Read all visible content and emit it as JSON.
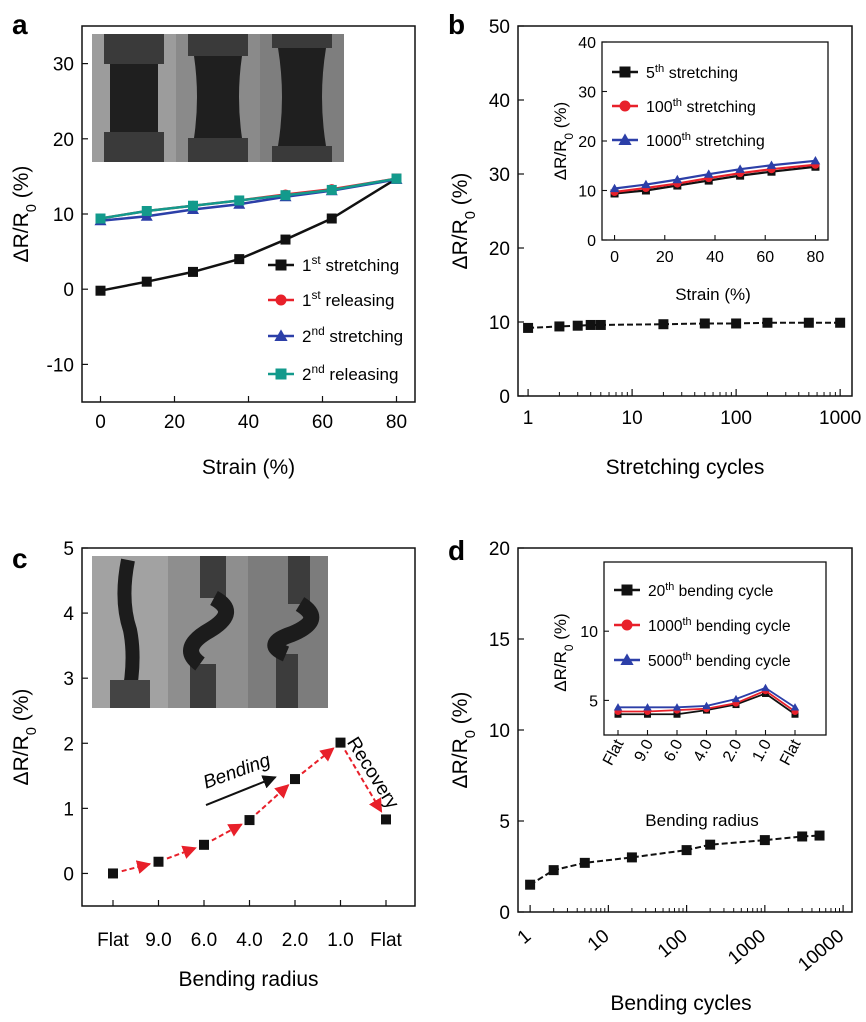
{
  "panels": {
    "a": "a",
    "b": "b",
    "c": "c",
    "d": "d"
  },
  "colors": {
    "black": "#111111",
    "red": "#e8202a",
    "blue": "#2c3fa8",
    "teal": "#139a8c",
    "photo_bg": "#7a7a7a"
  },
  "chart_data": [
    {
      "id": "a",
      "type": "line",
      "xlabel": "Strain (%)",
      "ylabel": "ΔR/R0 (%)",
      "xlim": [
        -5,
        85
      ],
      "ylim": [
        -15,
        35
      ],
      "xticks": [
        "0",
        "20",
        "40",
        "60",
        "80"
      ],
      "yticks": [
        "-10",
        "0",
        "10",
        "20",
        "30"
      ],
      "legend_position": "lower-right",
      "series": [
        {
          "name": "1st stretching",
          "base": "1",
          "sup": "st",
          "rest": " stretching",
          "color": "black",
          "x": [
            0,
            12.5,
            25,
            37.5,
            50,
            62.5,
            80
          ],
          "y": [
            -0.2,
            1.0,
            2.3,
            4.0,
            6.6,
            9.4,
            14.7
          ]
        },
        {
          "name": "1st releasing",
          "base": "1",
          "sup": "st",
          "rest": " releasing",
          "color": "red",
          "x": [
            0,
            12.5,
            25,
            37.5,
            50,
            62.5,
            80
          ],
          "y": [
            9.4,
            10.4,
            11.1,
            11.8,
            12.6,
            13.3,
            14.7
          ]
        },
        {
          "name": "2nd stretching",
          "base": "2",
          "sup": "nd",
          "rest": " stretching",
          "color": "blue",
          "x": [
            0,
            12.5,
            25,
            37.5,
            50,
            62.5,
            80
          ],
          "y": [
            9.1,
            9.7,
            10.6,
            11.3,
            12.3,
            13.1,
            14.6
          ]
        },
        {
          "name": "2nd releasing",
          "base": "2",
          "sup": "nd",
          "rest": " releasing",
          "color": "teal",
          "x": [
            0,
            12.5,
            25,
            37.5,
            50,
            62.5,
            80
          ],
          "y": [
            9.4,
            10.4,
            11.1,
            11.8,
            12.5,
            13.2,
            14.7
          ]
        }
      ]
    },
    {
      "id": "b",
      "type": "line",
      "xlabel": "Stretching cycles",
      "ylabel": "ΔR/R0 (%)",
      "xscale": "log",
      "xlim": [
        0.8,
        1300
      ],
      "ylim": [
        0,
        50
      ],
      "xticks": [
        "1",
        "10",
        "100",
        "1000"
      ],
      "yticks": [
        "0",
        "10",
        "20",
        "30",
        "40",
        "50"
      ],
      "series": [
        {
          "name": "",
          "color": "black",
          "x": [
            1,
            2,
            3,
            4,
            5,
            20,
            50,
            100,
            200,
            500,
            1000
          ],
          "y": [
            9.2,
            9.4,
            9.5,
            9.6,
            9.6,
            9.7,
            9.8,
            9.8,
            9.9,
            9.9,
            9.9
          ]
        }
      ],
      "inset": {
        "xlabel": "Strain (%)",
        "ylabel": "ΔR/R0 (%)",
        "xlim": [
          -5,
          85
        ],
        "ylim": [
          0,
          40
        ],
        "xticks": [
          "0",
          "20",
          "40",
          "60",
          "80"
        ],
        "yticks": [
          "0",
          "10",
          "20",
          "30",
          "40"
        ],
        "legend_position": "top-left",
        "series": [
          {
            "name": "5th stretching",
            "base": "5",
            "sup": "th",
            "rest": " stretching",
            "color": "black",
            "x": [
              0,
              12.5,
              25,
              37.5,
              50,
              62.5,
              80
            ],
            "y": [
              9.4,
              10.0,
              11.0,
              12.0,
              13.0,
              13.8,
              14.8
            ]
          },
          {
            "name": "100th stretching",
            "base": "100",
            "sup": "th",
            "rest": " stretching",
            "color": "red",
            "x": [
              0,
              12.5,
              25,
              37.5,
              50,
              62.5,
              80
            ],
            "y": [
              9.7,
              10.5,
              11.4,
              12.5,
              13.5,
              14.3,
              15.2
            ]
          },
          {
            "name": "1000th stretching",
            "base": "1000",
            "sup": "th",
            "rest": " stretching",
            "color": "blue",
            "x": [
              0,
              12.5,
              25,
              37.5,
              50,
              62.5,
              80
            ],
            "y": [
              10.4,
              11.2,
              12.2,
              13.3,
              14.3,
              15.1,
              16.0
            ]
          }
        ]
      }
    },
    {
      "id": "c",
      "type": "line",
      "xlabel": "Bending radius",
      "ylabel": "ΔR/R0 (%)",
      "categories": [
        "Flat",
        "9.0",
        "6.0",
        "4.0",
        "2.0",
        "1.0",
        "Flat"
      ],
      "ylim": [
        -0.5,
        5
      ],
      "yticks": [
        "0",
        "1",
        "2",
        "3",
        "4",
        "5"
      ],
      "annotations": [
        {
          "text": "Bending",
          "role": "bending"
        },
        {
          "text": "Recovery",
          "role": "recovery"
        }
      ],
      "series": [
        {
          "name": "",
          "color": "black",
          "arrow_color": "red",
          "y": [
            0.0,
            0.18,
            0.44,
            0.82,
            1.45,
            2.01,
            0.83
          ]
        }
      ]
    },
    {
      "id": "d",
      "type": "line",
      "xlabel": "Bending cycles",
      "ylabel": "ΔR/R0 (%)",
      "xscale": "log",
      "xlim": [
        0.7,
        13000
      ],
      "ylim": [
        0,
        20
      ],
      "xticks": [
        "1",
        "10",
        "100",
        "1000",
        "10000"
      ],
      "yticks": [
        "0",
        "5",
        "10",
        "15",
        "20"
      ],
      "series": [
        {
          "name": "",
          "color": "black",
          "x": [
            1,
            2,
            5,
            20,
            100,
            200,
            1000,
            3000,
            5000
          ],
          "y": [
            1.5,
            2.3,
            2.7,
            3.0,
            3.4,
            3.7,
            3.95,
            4.15,
            4.2
          ]
        }
      ],
      "inset": {
        "xlabel": "Bending radius",
        "ylabel": "ΔR/R0 (%)",
        "categories": [
          "Flat",
          "9.0",
          "6.0",
          "4.0",
          "2.0",
          "1.0",
          "Flat"
        ],
        "ylim": [
          2.5,
          15
        ],
        "yticks": [
          "5",
          "10"
        ],
        "legend_position": "top",
        "series": [
          {
            "name": "20th bending cycle",
            "base": "20",
            "sup": "th",
            "rest": " bending cycle",
            "color": "black",
            "y": [
              4.0,
              4.0,
              4.0,
              4.3,
              4.7,
              5.5,
              4.0
            ]
          },
          {
            "name": "1000th bending cycle",
            "base": "1000",
            "sup": "th",
            "rest": " bending cycle",
            "color": "red",
            "y": [
              4.2,
              4.2,
              4.3,
              4.4,
              4.8,
              5.7,
              4.2
            ]
          },
          {
            "name": "5000th bending cycle",
            "base": "5000",
            "sup": "th",
            "rest": " bending cycle",
            "color": "blue",
            "y": [
              4.5,
              4.5,
              4.5,
              4.6,
              5.1,
              5.9,
              4.5
            ]
          }
        ]
      }
    }
  ]
}
